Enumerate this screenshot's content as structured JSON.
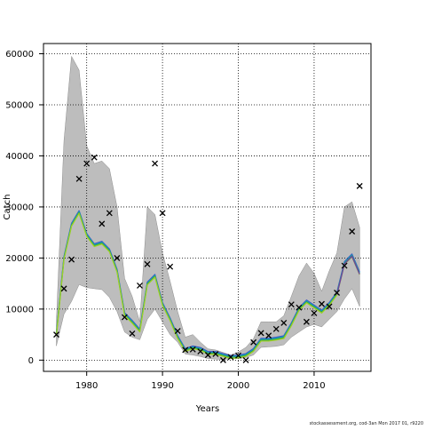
{
  "chart_data": {
    "type": "line",
    "xlabel": "Years",
    "ylabel": "Catch",
    "xlim": [
      1974.3,
      2017.5
    ],
    "ylim": [
      -2200,
      62000
    ],
    "xticks": [
      1980,
      1990,
      2000,
      2010
    ],
    "yticks": [
      0,
      10000,
      20000,
      30000,
      40000,
      50000,
      60000
    ],
    "grid": true,
    "colors": {
      "band": "#bdbdbd",
      "observed": "#000000",
      "estimate_lines": [
        "#3a4fc4",
        "#14a6c4",
        "#2f9e44",
        "#9dd126"
      ],
      "tail_line": "#6d3fa3"
    },
    "observed_catch": {
      "x": [
        1976,
        1977,
        1978,
        1979,
        1980,
        1981,
        1982,
        1983,
        1984,
        1985,
        1986,
        1987,
        1988,
        1989,
        1990,
        1991,
        1992,
        1993,
        1994,
        1995,
        1996,
        1997,
        1998,
        1999,
        2000,
        2001,
        2002,
        2003,
        2004,
        2005,
        2006,
        2007,
        2008,
        2009,
        2010,
        2011,
        2012,
        2013,
        2014,
        2015,
        2016
      ],
      "y": [
        5000,
        14000,
        19700,
        35500,
        38500,
        39700,
        26700,
        28800,
        20000,
        8400,
        5200,
        14600,
        18800,
        38500,
        28800,
        18300,
        5700,
        2000,
        2100,
        1700,
        1000,
        1200,
        0,
        600,
        900,
        0,
        3500,
        5300,
        4800,
        6100,
        7300,
        10900,
        10300,
        7500,
        9200,
        11000,
        10500,
        13200,
        18500,
        25200,
        34100
      ]
    },
    "confidence_band": {
      "x": [
        1976,
        1977,
        1978,
        1979,
        1980,
        1981,
        1982,
        1983,
        1984,
        1985,
        1986,
        1987,
        1988,
        1989,
        1990,
        1991,
        1992,
        1993,
        1994,
        1995,
        1996,
        1997,
        1998,
        1999,
        2000,
        2001,
        2002,
        2003,
        2004,
        2005,
        2006,
        2007,
        2008,
        2009,
        2010,
        2011,
        2012,
        2013,
        2014,
        2015,
        2016
      ],
      "lower": [
        2800,
        9000,
        11500,
        14800,
        14200,
        14000,
        13800,
        12300,
        9500,
        5500,
        4500,
        4000,
        8000,
        10000,
        7500,
        5000,
        3500,
        1200,
        1000,
        700,
        300,
        200,
        100,
        300,
        300,
        500,
        1000,
        2500,
        2600,
        2700,
        3000,
        4500,
        5500,
        6500,
        7000,
        6500,
        8000,
        9500,
        12000,
        14000,
        10500
      ],
      "upper": [
        7500,
        43000,
        59500,
        56800,
        42000,
        38500,
        39000,
        37500,
        30000,
        16000,
        12500,
        7500,
        30000,
        28500,
        21000,
        15500,
        9500,
        4500,
        5000,
        3500,
        2200,
        2000,
        1500,
        1000,
        1600,
        2500,
        4200,
        7500,
        7500,
        7500,
        8700,
        12500,
        16500,
        19000,
        17000,
        13500,
        17500,
        21000,
        30000,
        31000,
        26000
      ]
    },
    "estimate": {
      "x": [
        1976,
        1977,
        1978,
        1979,
        1980,
        1981,
        1982,
        1983,
        1984,
        1985,
        1986,
        1987,
        1988,
        1989,
        1990,
        1991,
        1992,
        1993,
        1994,
        1995,
        1996,
        1997,
        1998,
        1999,
        2000,
        2001,
        2002,
        2003,
        2004,
        2005,
        2006,
        2007,
        2008,
        2009,
        2010,
        2011,
        2012,
        2013,
        2014,
        2015,
        2016
      ],
      "y": [
        5000,
        20000,
        26500,
        29000,
        24500,
        22500,
        23000,
        21500,
        17500,
        9000,
        7500,
        5800,
        15000,
        16500,
        11000,
        8000,
        4500,
        2000,
        2500,
        2200,
        1400,
        1400,
        1000,
        600,
        700,
        1000,
        2000,
        4000,
        4000,
        4200,
        4500,
        7000,
        10000,
        11500,
        10500,
        9500,
        11000,
        13000,
        19000,
        20500,
        17000
      ]
    }
  },
  "footer_text": "stockassessment.org, cod-3an  Mon 2017 01, r9220"
}
